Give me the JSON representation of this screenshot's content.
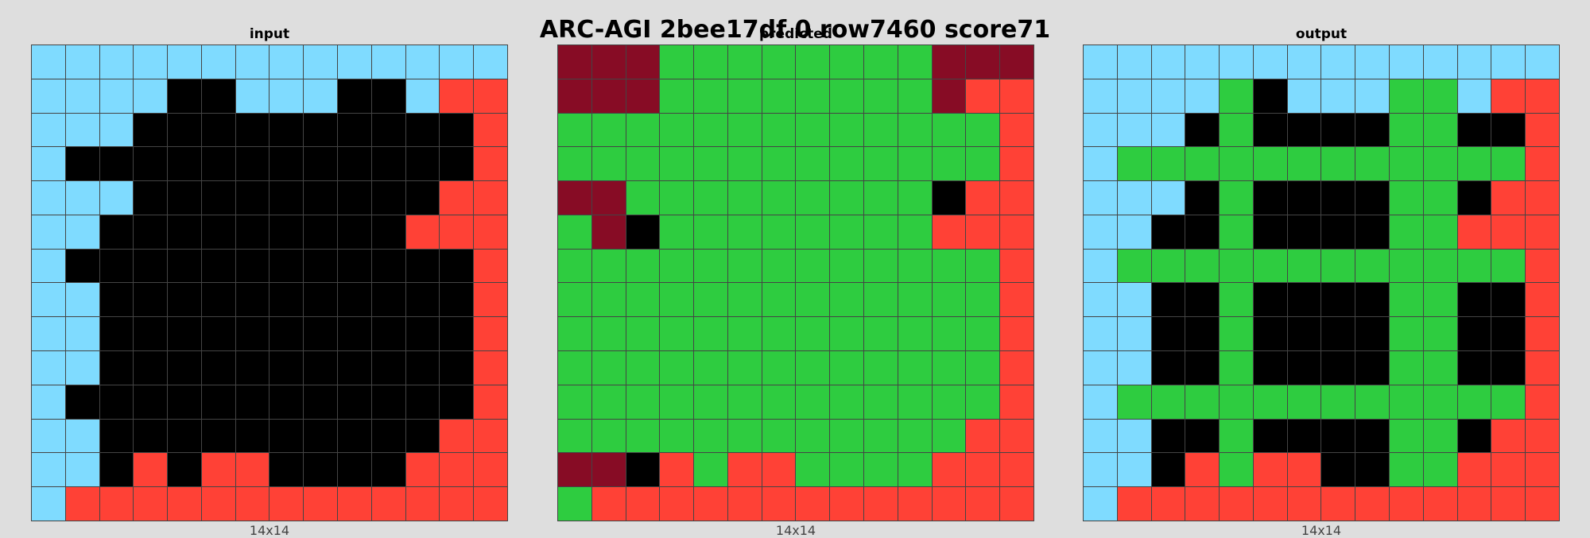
{
  "title": "ARC-AGI 2bee17df 0 row7460 score71",
  "palette": {
    "0": "#000000",
    "2": "#ff4136",
    "3": "#2ecc40",
    "8": "#7fdbff",
    "9": "#870c25"
  },
  "panels": [
    {
      "label": "input",
      "dims": "14x14",
      "grid": [
        "88888888888888",
        "88880088800822",
        "88800000000002",
        "80000000000002",
        "88800000000022",
        "88000000000222",
        "80000000000002",
        "88000000000002",
        "88000000000002",
        "88000000000002",
        "80000000000002",
        "88000000000022",
        "88020220000222",
        "82222222222222"
      ]
    },
    {
      "label": "predicted",
      "dims": "14x14",
      "grid": [
        "99933333333999",
        "99933333333922",
        "33333333333332",
        "33333333333332",
        "99333333333022",
        "39033333333222",
        "33333333333332",
        "33333333333332",
        "33333333333332",
        "33333333333332",
        "33333333333332",
        "33333333333322",
        "99023223333222",
        "32222222222222"
      ]
    },
    {
      "label": "output",
      "dims": "14x14",
      "grid": [
        "88888888888888",
        "88883088833822",
        "88803000033002",
        "83333333333332",
        "88803000033022",
        "88003000033222",
        "83333333333332",
        "88003000033002",
        "88003000033002",
        "88003000033002",
        "83333333333332",
        "88003000033022",
        "88023220033222",
        "82222222222222"
      ]
    }
  ]
}
